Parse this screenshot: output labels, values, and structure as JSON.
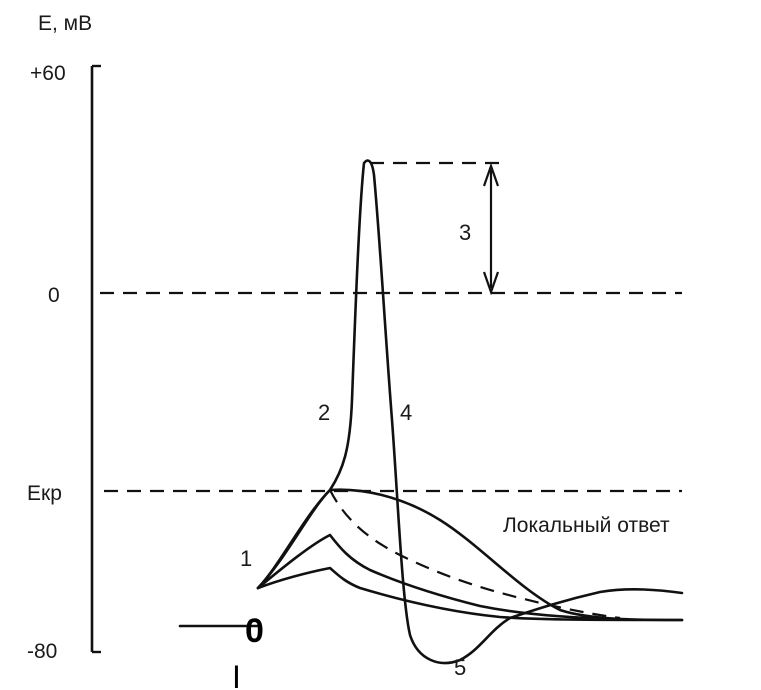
{
  "y_axis": {
    "label": "E, мВ",
    "tick_top": "+60",
    "tick_zero": "0",
    "tick_threshold": "Екр",
    "tick_bottom": "-80"
  },
  "phases": {
    "p1": "1",
    "p2": "2",
    "p3": "3",
    "p4": "4",
    "p5": "5"
  },
  "local_response_label": "Локальный ответ",
  "origin_label": "0",
  "stimulus_mark": "I"
}
